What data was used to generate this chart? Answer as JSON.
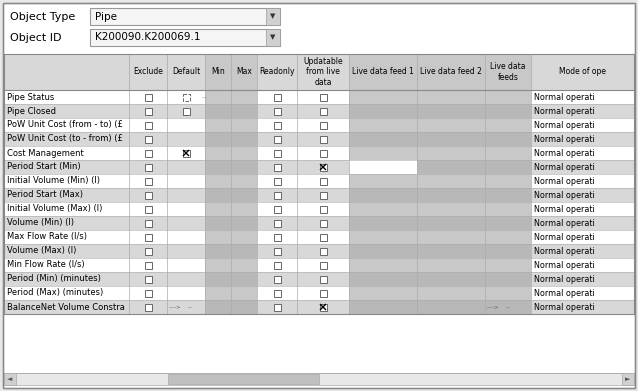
{
  "object_type_label": "Object Type",
  "object_type_value": "Pipe",
  "object_id_label": "Object ID",
  "object_id_value": "K200090.K200069.1",
  "bg_color": "#e8e8e8",
  "table_border": "#888888",
  "header_bg": "#d8d8d8",
  "col_headers": [
    "Exclude",
    "Default",
    "Min",
    "Max",
    "Readonly",
    "Updatable\nfrom live\ndata",
    "Live data feed 1",
    "Live data feed 2",
    "Live data\nfeeds",
    "Mode of ope"
  ],
  "row_labels": [
    "Pipe Status",
    "Pipe Closed",
    "PoW Unit Cost (from - to) (£",
    "PoW Unit Cost (to - from) (£",
    "Cost Management",
    "Period Start (Min)",
    "Initial Volume (Min) (l)",
    "Period Start (Max)",
    "Initial Volume (Max) (l)",
    "Volume (Min) (l)",
    "Max Flow Rate (l/s)",
    "Volume (Max) (l)",
    "Min Flow Rate (l/s)",
    "Period (Min) (minutes)",
    "Period (Max) (minutes)",
    "BalanceNet Volume Constra"
  ],
  "mode_text": "Normal operati",
  "figsize": [
    6.38,
    3.91
  ],
  "dpi": 100
}
